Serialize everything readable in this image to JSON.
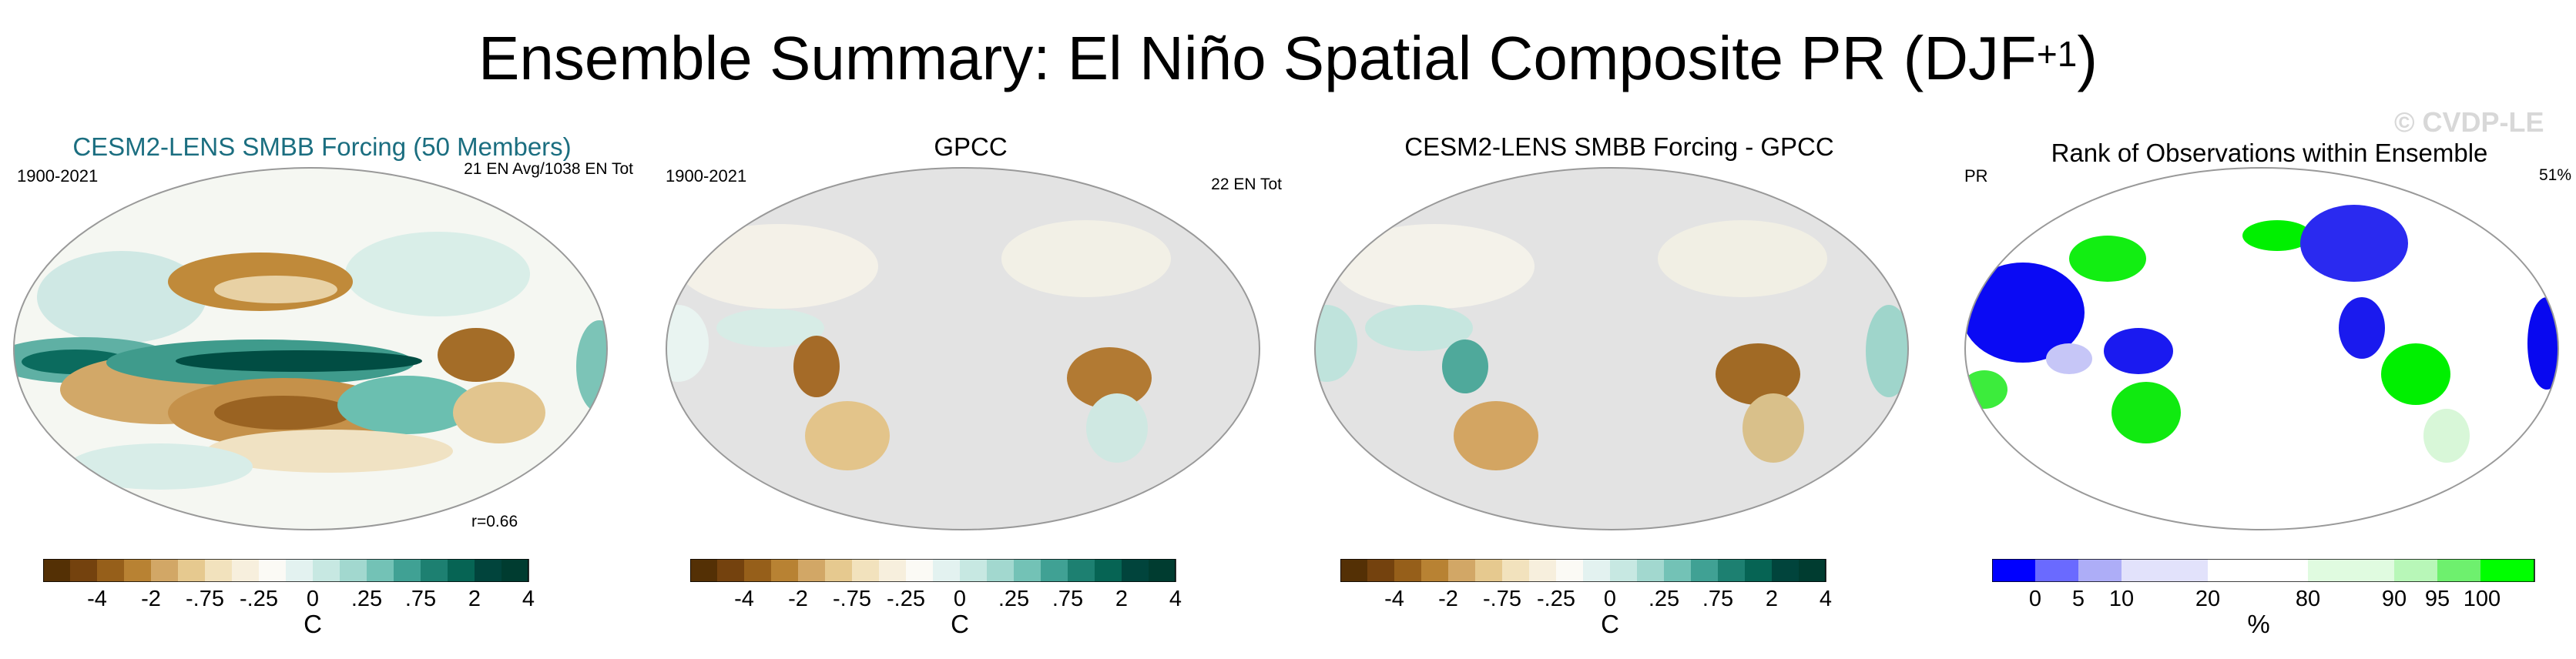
{
  "title": {
    "main": "Ensemble Summary: El Niño Spatial Composite PR (DJF",
    "sup": "+1",
    "close": ")"
  },
  "watermark": "© CVDP-LE",
  "colors": {
    "brown_dark": "#543005",
    "teal_dark": "#01443c",
    "land_gray": "#e3e3e3",
    "rank_low": "#0000ff",
    "rank_high": "#00ff00",
    "title_teal": "#1b6e80"
  },
  "panels": [
    {
      "title": "CESM2-LENS SMBB Forcing (50 Members)",
      "left": "1900-2021",
      "right": "21 EN Avg/1038 EN Tot",
      "extra": "r=0.66",
      "ticks": [
        "-4",
        "-2",
        "-.75",
        "-.25",
        "0",
        ".25",
        ".75",
        "2",
        "4"
      ],
      "units": "C"
    },
    {
      "title": "GPCC",
      "left": "1900-2021",
      "right": "22 EN Tot",
      "ticks": [
        "-4",
        "-2",
        "-.75",
        "-.25",
        "0",
        ".25",
        ".75",
        "2",
        "4"
      ],
      "units": "C"
    },
    {
      "title": "CESM2-LENS SMBB Forcing - GPCC",
      "left": "",
      "right": "",
      "ticks": [
        "-4",
        "-2",
        "-.75",
        "-.25",
        "0",
        ".25",
        ".75",
        "2",
        "4"
      ],
      "units": "C"
    },
    {
      "title": "Rank of Observations within Ensemble",
      "left": "PR",
      "right": "51%",
      "ticks": [
        "0",
        "5",
        "10",
        "20",
        "80",
        "90",
        "95",
        "100"
      ],
      "units": "%"
    }
  ]
}
